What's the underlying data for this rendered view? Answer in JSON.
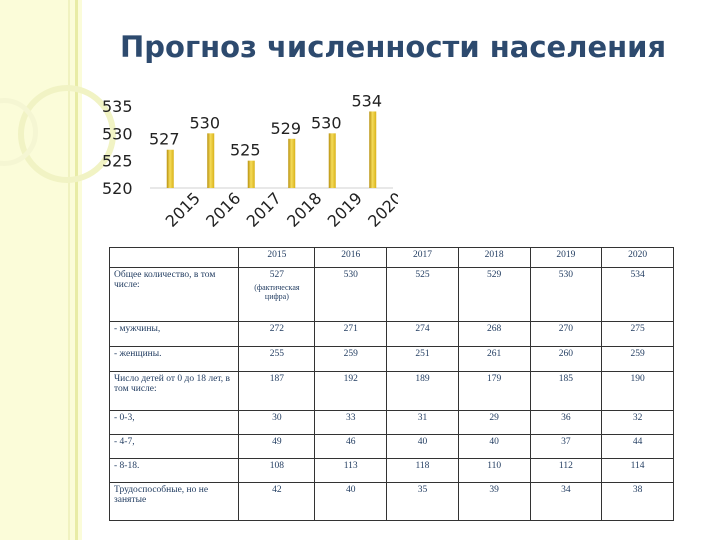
{
  "title": "Прогноз численности населения",
  "chart_data": {
    "type": "bar",
    "categories": [
      "2015",
      "2016",
      "2017",
      "2018",
      "2019",
      "2020"
    ],
    "values": [
      527,
      530,
      525,
      529,
      530,
      534
    ],
    "ylim": [
      520,
      535
    ],
    "yticks": [
      "520",
      "525",
      "530",
      "535"
    ],
    "data_labels": [
      "527",
      "530",
      "525",
      "529",
      "530",
      "534"
    ],
    "bar_color": "#d9b21a",
    "grid": false
  },
  "table": {
    "header": [
      "",
      "2015",
      "2016",
      "2017",
      "2018",
      "2019",
      "2020"
    ],
    "rows": [
      {
        "label": "Общее количество, в том числе:",
        "note": "(фактическая цифра)",
        "values": [
          "527",
          "530",
          "525",
          "529",
          "530",
          "534"
        ]
      },
      {
        "label": "- мужчины,",
        "values": [
          "272",
          "271",
          "274",
          "268",
          "270",
          "275"
        ]
      },
      {
        "label": "- женщины.",
        "values": [
          "255",
          "259",
          "251",
          "261",
          "260",
          "259"
        ]
      },
      {
        "label": "Число детей от 0 до 18 лет, в том числе:",
        "values": [
          "187",
          "192",
          "189",
          "179",
          "185",
          "190"
        ]
      },
      {
        "label": "- 0-3,",
        "values": [
          "30",
          "33",
          "31",
          "29",
          "36",
          "32"
        ]
      },
      {
        "label": "- 4-7,",
        "values": [
          "49",
          "46",
          "40",
          "40",
          "37",
          "44"
        ]
      },
      {
        "label": "- 8-18.",
        "values": [
          "108",
          "113",
          "118",
          "110",
          "112",
          "114"
        ]
      },
      {
        "label": "Трудоспособные, но не занятые",
        "values": [
          "42",
          "40",
          "35",
          "39",
          "34",
          "38"
        ]
      }
    ]
  }
}
